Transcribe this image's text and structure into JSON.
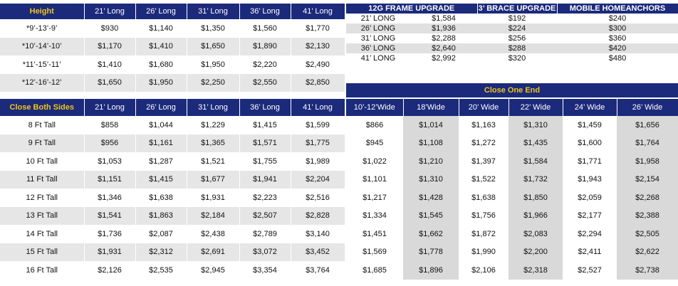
{
  "height_table": {
    "header": [
      "Height",
      "21’ Long",
      "26’ Long",
      "31’ Long",
      "36’ Long",
      "41’ Long"
    ],
    "rows": [
      [
        "*9’-13’-9’",
        "$930",
        "$1,140",
        "$1,350",
        "$1,560",
        "$1,770"
      ],
      [
        "*10’-14’-10’",
        "$1,170",
        "$1,410",
        "$1,650",
        "$1,890",
        "$2,130"
      ],
      [
        "*11’-15’-11’",
        "$1,410",
        "$1,680",
        "$1,950",
        "$2,220",
        "$2,490"
      ],
      [
        "*12’-16’-12’",
        "$1,650",
        "$1,950",
        "$2,250",
        "$2,550",
        "$2,850"
      ]
    ]
  },
  "close_both_sides": {
    "header": [
      "Close Both Sides",
      "21’ Long",
      "26’ Long",
      "31’ Long",
      "36’ Long",
      "41’ Long"
    ],
    "rows": [
      [
        "8 Ft Tall",
        "$858",
        "$1,044",
        "$1,229",
        "$1,415",
        "$1,599"
      ],
      [
        "9 Ft Tall",
        "$956",
        "$1,161",
        "$1,365",
        "$1,571",
        "$1,775"
      ],
      [
        "10 Ft Tall",
        "$1,053",
        "$1,287",
        "$1,521",
        "$1,755",
        "$1,989"
      ],
      [
        "11 Ft Tall",
        "$1,151",
        "$1,415",
        "$1,677",
        "$1,941",
        "$2,204"
      ],
      [
        "12 Ft Tall",
        "$1,346",
        "$1,638",
        "$1,931",
        "$2,223",
        "$2,516"
      ],
      [
        "13 Ft Tall",
        "$1,541",
        "$1,863",
        "$2,184",
        "$2,507",
        "$2,828"
      ],
      [
        "14 Ft Tall",
        "$1,736",
        "$2,087",
        "$2,438",
        "$2,789",
        "$3,140"
      ],
      [
        "15 Ft Tall",
        "$1,931",
        "$2,312",
        "$2,691",
        "$3,072",
        "$3,452"
      ],
      [
        "16 Ft Tall",
        "$2,126",
        "$2,535",
        "$2,945",
        "$3,354",
        "$3,764"
      ]
    ]
  },
  "upgrades": {
    "header": [
      "12G FRAME UPGRADE",
      "3’ BRACE UPGRADE",
      "MOBILE HOMEANCHORS"
    ],
    "rows": [
      [
        "21’ LONG",
        "$1,584",
        "$192",
        "$240"
      ],
      [
        "26’ LONG",
        "$1,936",
        "$224",
        "$300"
      ],
      [
        "31’ LONG",
        "$2,288",
        "$256",
        "$360"
      ],
      [
        "36’ LONG",
        "$2,640",
        "$288",
        "$420"
      ],
      [
        "41’ LONG",
        "$2,992",
        "$320",
        "$480"
      ]
    ]
  },
  "close_one_end": {
    "title": "Close One End",
    "header": [
      "10’-12’Wide",
      "18’Wide",
      "20’ Wide",
      "22’ Wide",
      "24’ Wide",
      "26’ Wide"
    ],
    "rows": [
      [
        "$866",
        "$1,014",
        "$1,163",
        "$1,310",
        "$1,459",
        "$1,656"
      ],
      [
        "$945",
        "$1,108",
        "$1,272",
        "$1,435",
        "$1,600",
        "$1,764"
      ],
      [
        "$1,022",
        "$1,210",
        "$1,397",
        "$1,584",
        "$1,771",
        "$1,958"
      ],
      [
        "$1,101",
        "$1,310",
        "$1,522",
        "$1,732",
        "$1,943",
        "$2,154"
      ],
      [
        "$1,217",
        "$1,428",
        "$1,638",
        "$1,850",
        "$2,059",
        "$2,268"
      ],
      [
        "$1,334",
        "$1,545",
        "$1,756",
        "$1,966",
        "$2,177",
        "$2,388"
      ],
      [
        "$1,451",
        "$1,662",
        "$1,872",
        "$2,083",
        "$2,294",
        "$2,505"
      ],
      [
        "$1,569",
        "$1,778",
        "$1,990",
        "$2,200",
        "$2,411",
        "$2,622"
      ],
      [
        "$1,685",
        "$1,896",
        "$2,106",
        "$2,318",
        "$2,527",
        "$2,738"
      ]
    ]
  },
  "colors": {
    "header_bg": "#1b2a7b",
    "header_accent": "#f0c419",
    "row_shade": "#e6e6e6"
  }
}
